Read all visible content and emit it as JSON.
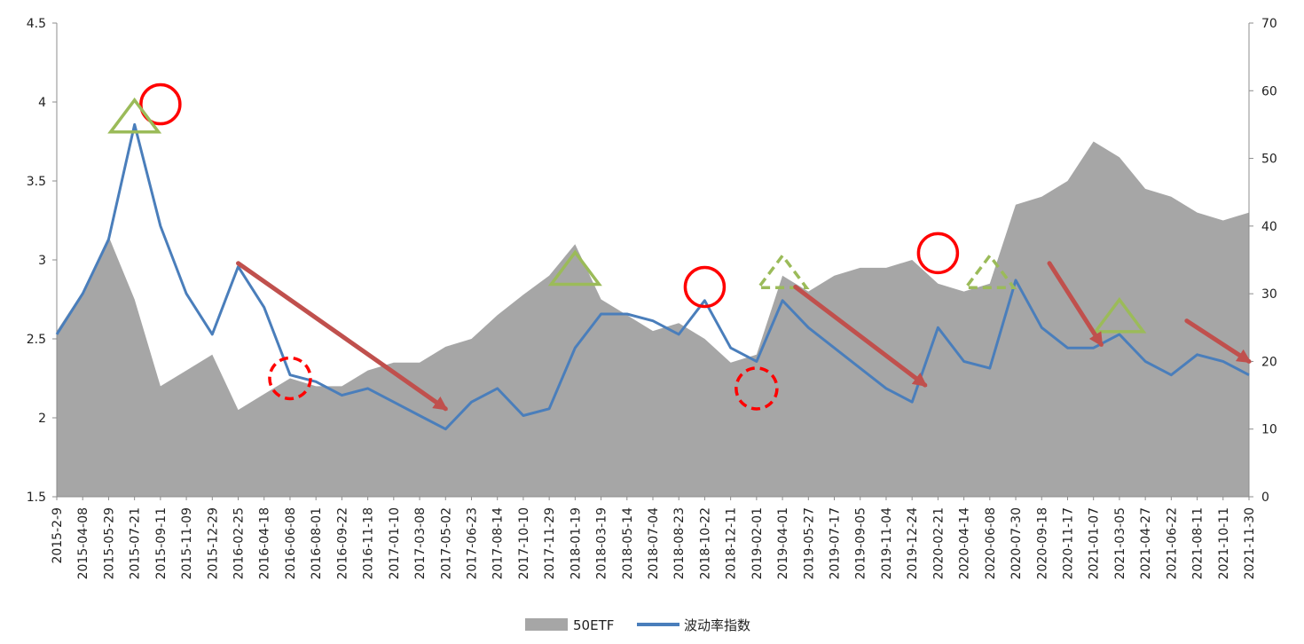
{
  "chart_data": {
    "type": "area",
    "title": "",
    "x_categories": [
      "2015-2-9",
      "2015-04-08",
      "2015-05-29",
      "2015-07-21",
      "2015-09-11",
      "2015-11-09",
      "2015-12-29",
      "2016-02-25",
      "2016-04-18",
      "2016-06-08",
      "2016-08-01",
      "2016-09-22",
      "2016-11-18",
      "2017-01-10",
      "2017-03-08",
      "2017-05-02",
      "2017-06-23",
      "2017-08-14",
      "2017-10-10",
      "2017-11-29",
      "2018-01-19",
      "2018-03-19",
      "2018-05-14",
      "2018-07-04",
      "2018-08-23",
      "2018-10-22",
      "2018-12-11",
      "2019-02-01",
      "2019-04-01",
      "2019-05-27",
      "2019-07-17",
      "2019-09-05",
      "2019-11-04",
      "2019-12-24",
      "2020-02-21",
      "2020-04-14",
      "2020-06-08",
      "2020-07-30",
      "2020-09-18",
      "2020-11-17",
      "2021-01-07",
      "2021-03-05",
      "2021-04-27",
      "2021-06-22",
      "2021-08-11",
      "2021-10-11",
      "2021-11-30"
    ],
    "y_left": {
      "ticks": [
        "1.5",
        "2",
        "2.5",
        "3",
        "3.5",
        "4",
        "4.5"
      ],
      "min": 1.5,
      "max": 4.5,
      "series": "50ETF"
    },
    "y_right": {
      "ticks": [
        "0",
        "10",
        "20",
        "30",
        "40",
        "50",
        "60",
        "70"
      ],
      "min": 0,
      "max": 70,
      "series": "波动率指数"
    },
    "series": [
      {
        "name": "50ETF",
        "kind": "area",
        "axis": "left",
        "color": "#a6a6a6",
        "values": [
          2.55,
          2.8,
          3.15,
          2.75,
          2.2,
          2.3,
          2.4,
          2.05,
          2.15,
          2.25,
          2.2,
          2.2,
          2.3,
          2.35,
          2.35,
          2.45,
          2.5,
          2.65,
          2.78,
          2.9,
          3.1,
          2.75,
          2.65,
          2.55,
          2.6,
          2.5,
          2.35,
          2.4,
          2.9,
          2.8,
          2.9,
          2.95,
          2.95,
          3.0,
          2.85,
          2.8,
          2.85,
          3.35,
          3.4,
          3.5,
          3.75,
          3.65,
          3.45,
          3.4,
          3.3,
          3.25,
          3.3
        ]
      },
      {
        "name": "波动率指数",
        "kind": "line",
        "axis": "right",
        "color": "#4a7ebb",
        "values": [
          24,
          30,
          38,
          55,
          40,
          30,
          24,
          34,
          28,
          18,
          17,
          15,
          16,
          14,
          12,
          10,
          14,
          16,
          12,
          13,
          22,
          27,
          27,
          26,
          24,
          29,
          22,
          20,
          29,
          25,
          22,
          19,
          16,
          14,
          25,
          20,
          19,
          32,
          25,
          22,
          22,
          24,
          20,
          18,
          21,
          20,
          18
        ]
      }
    ],
    "annotations": {
      "red_circles": [
        [
          4,
          58
        ],
        [
          25,
          31
        ],
        [
          34,
          36
        ]
      ],
      "red_dashed_circles": [
        [
          9,
          17.5
        ],
        [
          27,
          16
        ]
      ],
      "green_triangles": [
        [
          3,
          56
        ],
        [
          20,
          33.5
        ],
        [
          41,
          26.5
        ]
      ],
      "green_dashed_triangles": [
        [
          28,
          33
        ],
        [
          36,
          33
        ]
      ],
      "arrows": [
        [
          [
            7,
            34.5
          ],
          [
            15,
            13
          ]
        ],
        [
          [
            28.5,
            31
          ],
          [
            33.5,
            16.5
          ]
        ],
        [
          [
            38.3,
            34.5
          ],
          [
            40.3,
            22.5
          ]
        ],
        [
          [
            43.6,
            26
          ],
          [
            46,
            20
          ]
        ]
      ]
    },
    "legend": {
      "position": "bottom-center"
    },
    "grid": false
  }
}
